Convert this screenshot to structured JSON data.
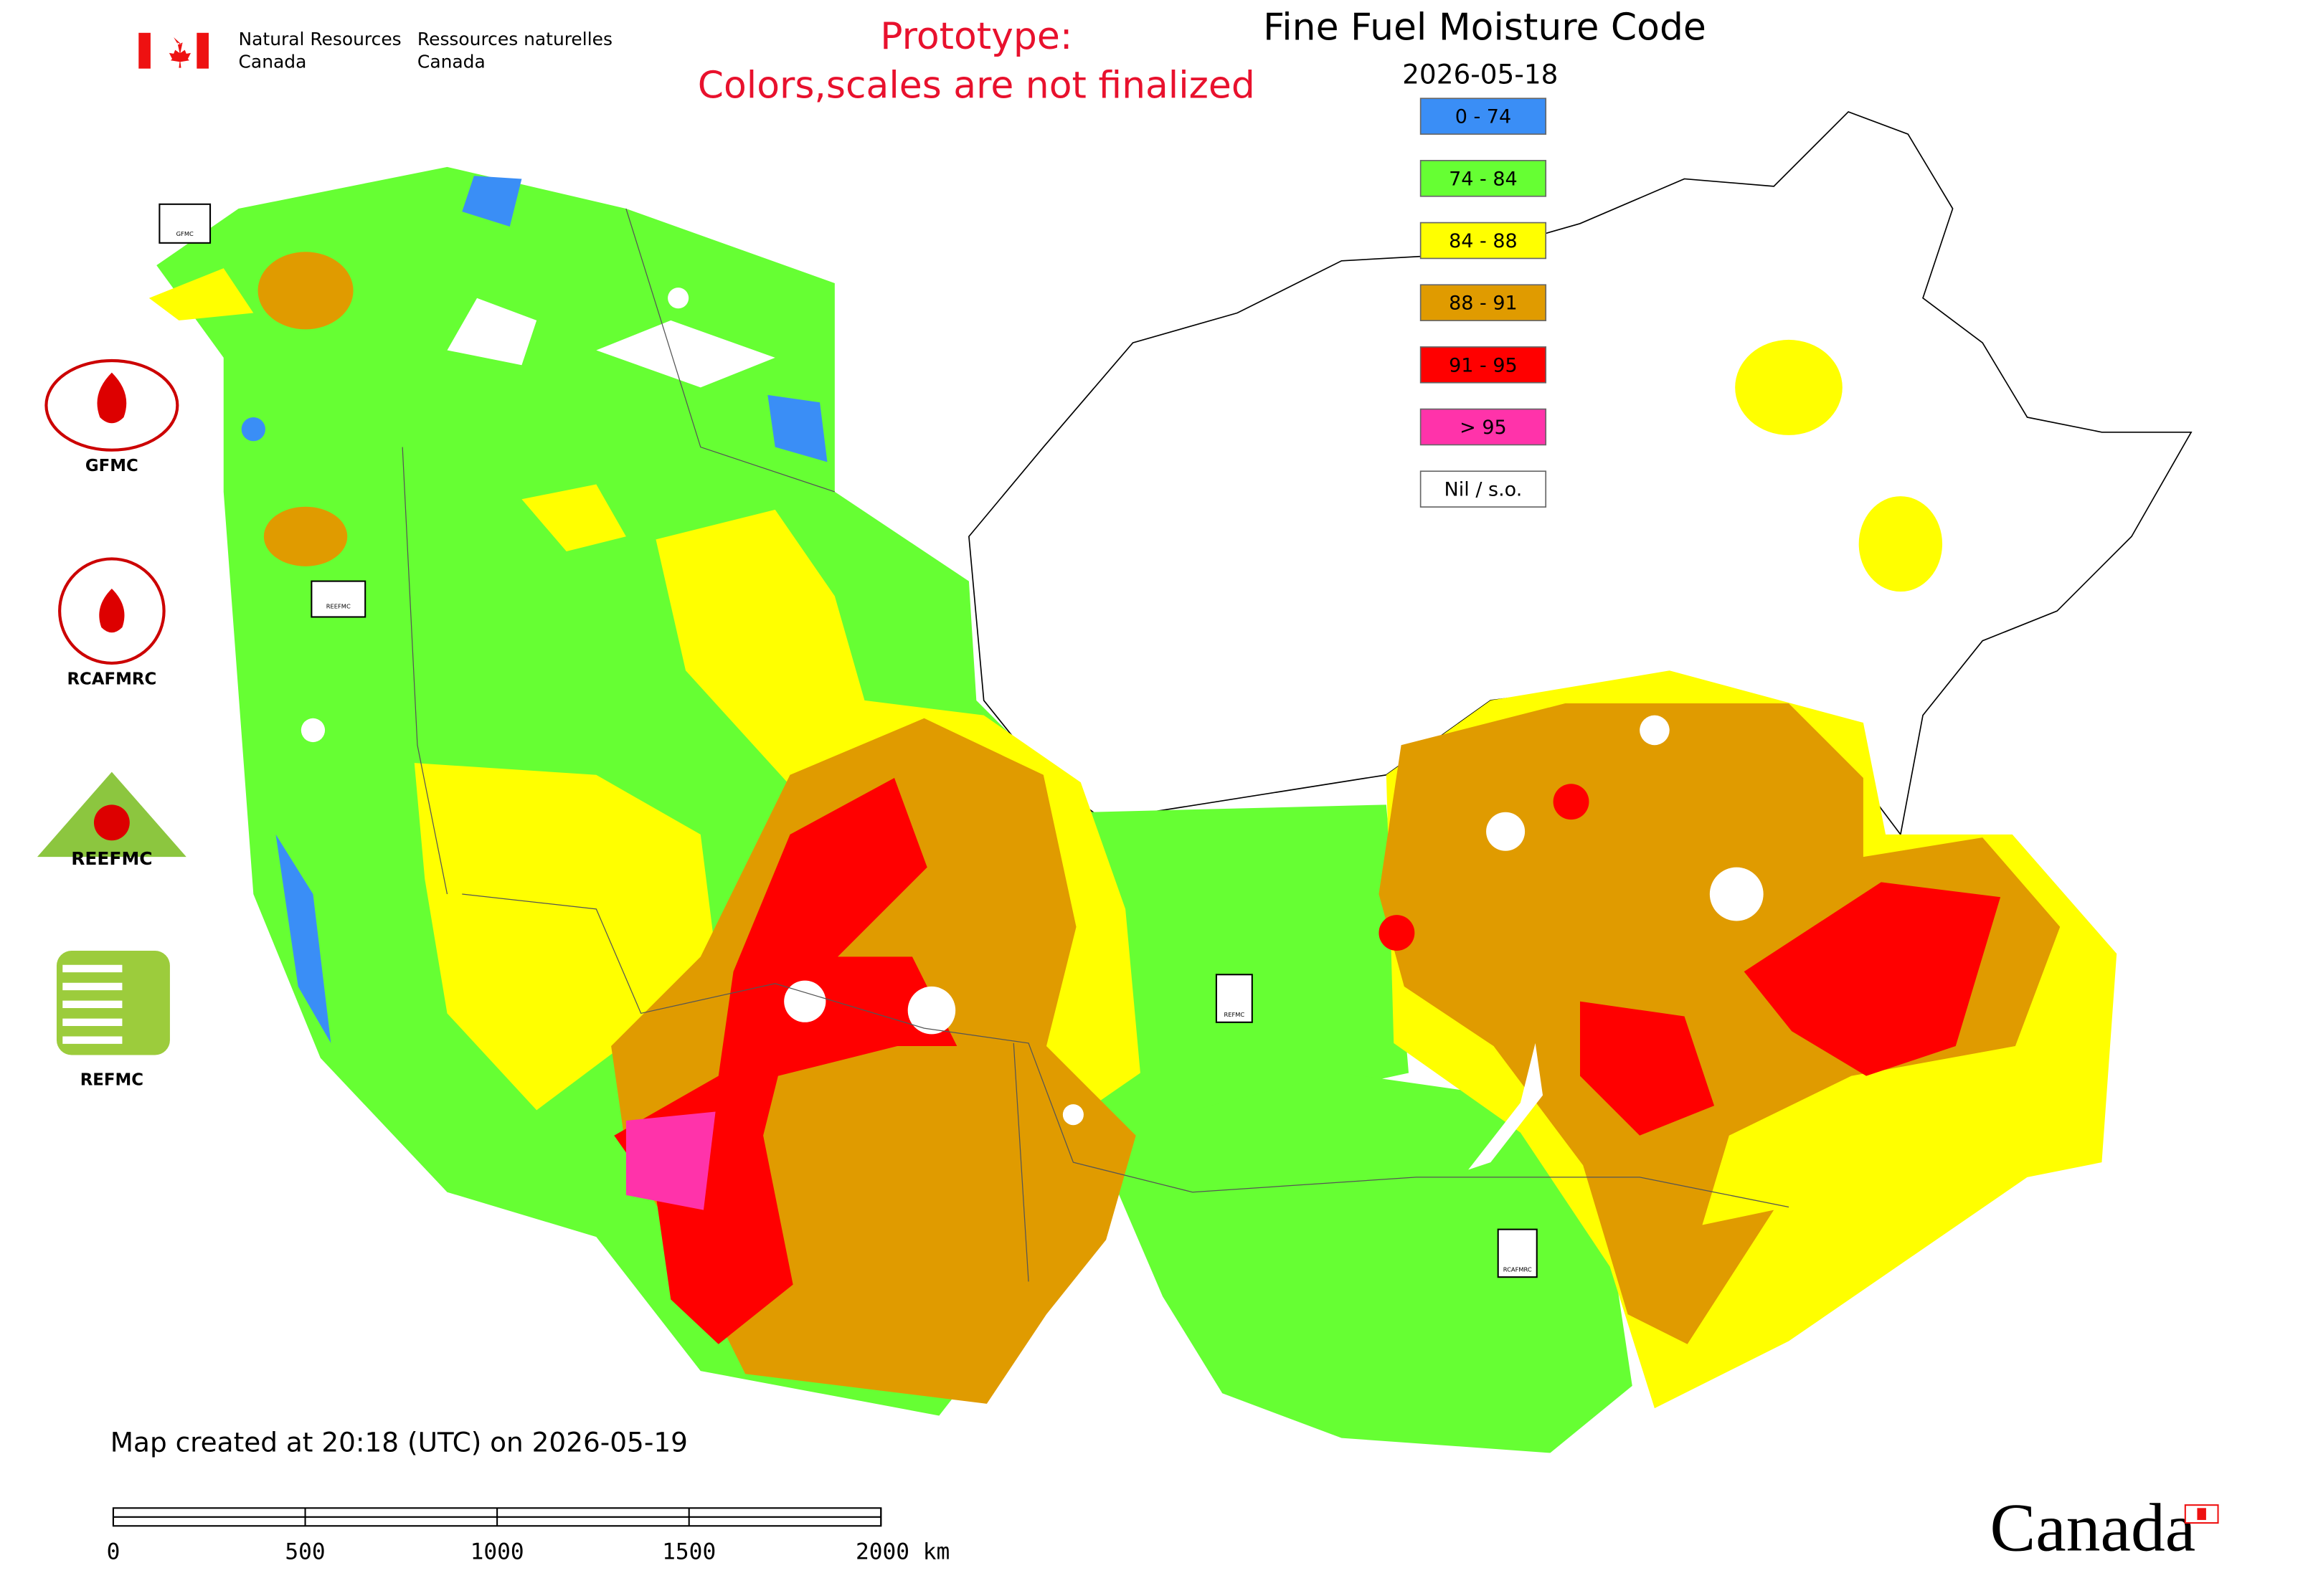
{
  "header": {
    "org_en": [
      "Natural Resources",
      "Canada"
    ],
    "org_fr": [
      "Ressources naturelles",
      "Canada"
    ]
  },
  "notice": [
    "Prototype:",
    "Colors,scales are not finalized"
  ],
  "title": "Fine Fuel Moisture Code",
  "date": "2026-05-18",
  "legend": [
    {
      "label": "0 - 74",
      "color": "#3a8ef6"
    },
    {
      "label": "74 - 84",
      "color": "#66ff33"
    },
    {
      "label": "84 - 88",
      "color": "#ffff00"
    },
    {
      "label": "88 - 91",
      "color": "#e09b00"
    },
    {
      "label": "91 - 95",
      "color": "#ff0000"
    },
    {
      "label": "> 95",
      "color": "#ff33aa"
    },
    {
      "label": "Nil / s.o.",
      "color": "#ffffff"
    }
  ],
  "logos": [
    {
      "label": "GFMC"
    },
    {
      "label": "RCAFMRC"
    },
    {
      "label": "REEFMC"
    },
    {
      "label": "REFMC"
    }
  ],
  "footer": {
    "created": "Map created at 20:18 (UTC) on 2026-05-19",
    "wordmark": "Canada"
  },
  "scale_bar": {
    "labels": [
      "0",
      "500",
      "1000",
      "1500",
      "2000 km"
    ]
  }
}
